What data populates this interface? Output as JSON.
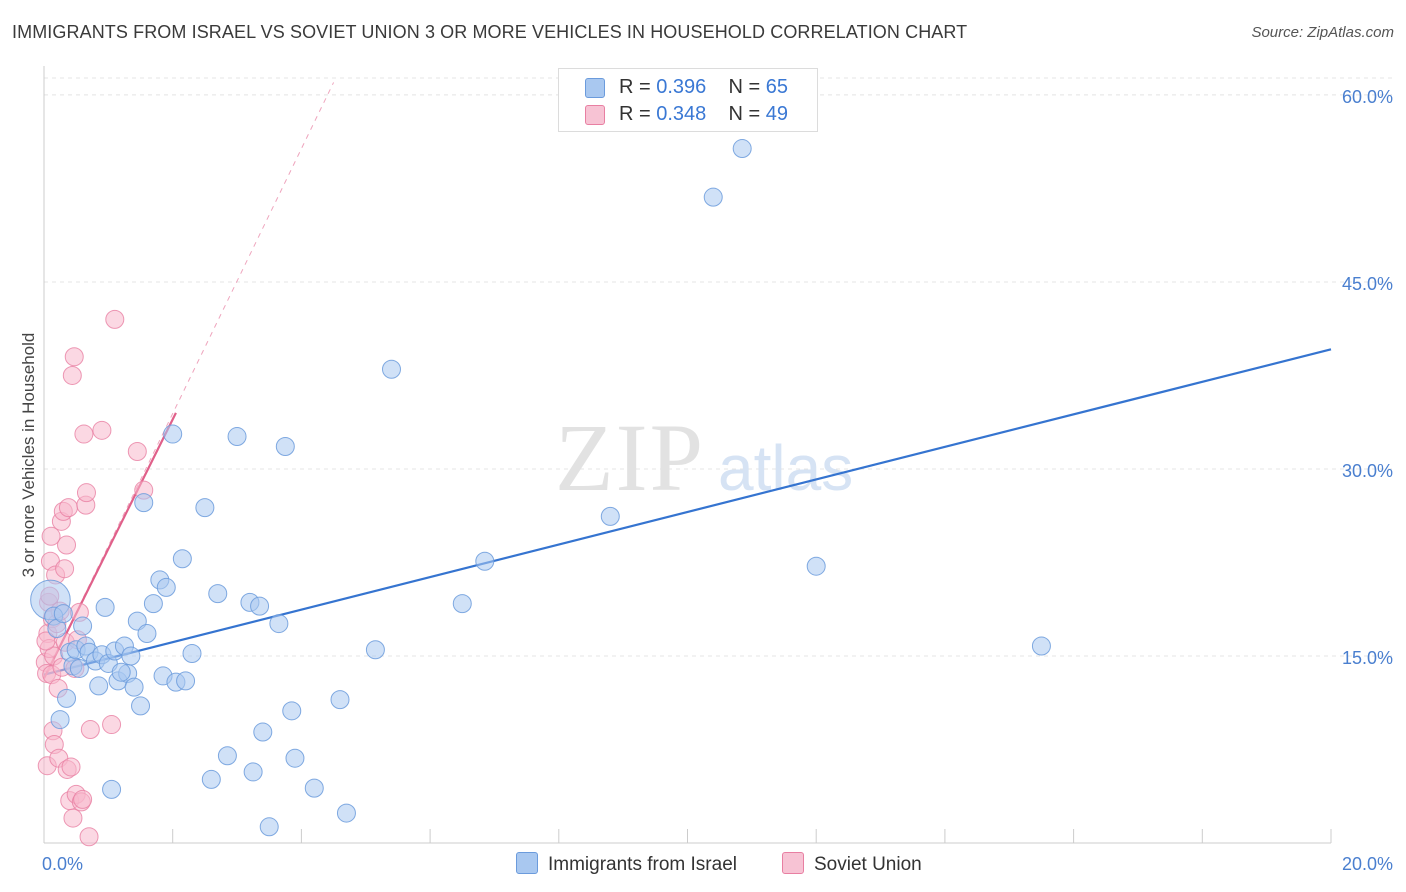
{
  "title": "IMMIGRANTS FROM ISRAEL VS SOVIET UNION 3 OR MORE VEHICLES IN HOUSEHOLD CORRELATION CHART",
  "source": "Source: ZipAtlas.com",
  "legend": {
    "rows": [
      {
        "r_label": "R = ",
        "r_value": "0.396",
        "n_label": "N = ",
        "n_value": "65"
      },
      {
        "r_label": "R = ",
        "r_value": "0.348",
        "n_label": "N = ",
        "n_value": "49"
      }
    ]
  },
  "bottom_legend": [
    "Immigrants from Israel",
    "Soviet Union"
  ],
  "colors": {
    "blue_fill": "#a9c8f0",
    "blue_stroke": "#6b9bdc",
    "blue_line": "#3574d0",
    "pink_fill": "#f7b8cc",
    "pink_stroke": "#e87fa2",
    "pink_line": "#e0608a",
    "grid": "#e4e4e4",
    "axis_label": "#4a7fcf"
  },
  "chart_data": {
    "type": "scatter",
    "title": "IMMIGRANTS FROM ISRAEL VS SOVIET UNION 3 OR MORE VEHICLES IN HOUSEHOLD CORRELATION CHART",
    "xlabel": "",
    "ylabel": "3 or more Vehicles in Household",
    "xlim": [
      0,
      20
    ],
    "ylim": [
      0,
      62
    ],
    "x_tick_labels": [
      "0.0%",
      "20.0%"
    ],
    "y_ticks": [
      15,
      30,
      45,
      60
    ],
    "y_tick_labels": [
      "15.0%",
      "30.0%",
      "45.0%",
      "60.0%"
    ],
    "grid": true,
    "legend_position": "top-center",
    "series": [
      {
        "name": "Immigrants from Israel",
        "r": 0.396,
        "n": 65,
        "trend": {
          "x": [
            0,
            20
          ],
          "y": [
            13.5,
            39.6
          ]
        },
        "points": [
          [
            0.1,
            19.5,
            2.2
          ],
          [
            0.15,
            18.2,
            1
          ],
          [
            0.2,
            17.2,
            1
          ],
          [
            0.25,
            9.9,
            1
          ],
          [
            0.35,
            11.6,
            1
          ],
          [
            0.4,
            15.3,
            1
          ],
          [
            0.45,
            14.2,
            1
          ],
          [
            0.5,
            15.5,
            1
          ],
          [
            0.6,
            17.4,
            1
          ],
          [
            0.65,
            15.8,
            1
          ],
          [
            0.7,
            15.3,
            1
          ],
          [
            0.8,
            14.6,
            1
          ],
          [
            0.85,
            12.6,
            1
          ],
          [
            0.9,
            15.1,
            1
          ],
          [
            0.95,
            18.9,
            1
          ],
          [
            1.0,
            14.4,
            1
          ],
          [
            1.05,
            4.3,
            1
          ],
          [
            1.1,
            15.4,
            1
          ],
          [
            1.15,
            13.0,
            1
          ],
          [
            1.25,
            15.8,
            1
          ],
          [
            1.3,
            13.6,
            1
          ],
          [
            1.35,
            15.0,
            1
          ],
          [
            1.4,
            12.5,
            1
          ],
          [
            1.45,
            17.8,
            1
          ],
          [
            1.5,
            11.0,
            1
          ],
          [
            1.55,
            27.3,
            1
          ],
          [
            1.6,
            16.8,
            1
          ],
          [
            1.7,
            19.2,
            1
          ],
          [
            1.8,
            21.1,
            1
          ],
          [
            1.85,
            13.4,
            1
          ],
          [
            1.9,
            20.5,
            1
          ],
          [
            2.0,
            32.8,
            1
          ],
          [
            2.05,
            12.9,
            1
          ],
          [
            2.15,
            22.8,
            1
          ],
          [
            2.2,
            13.0,
            1
          ],
          [
            2.3,
            15.2,
            1
          ],
          [
            2.5,
            26.9,
            1
          ],
          [
            2.6,
            5.1,
            1
          ],
          [
            2.7,
            20.0,
            1
          ],
          [
            2.85,
            7.0,
            1
          ],
          [
            3.0,
            32.6,
            1
          ],
          [
            3.2,
            19.3,
            1
          ],
          [
            3.25,
            5.7,
            1
          ],
          [
            3.35,
            19.0,
            1
          ],
          [
            3.4,
            8.9,
            1
          ],
          [
            3.5,
            1.3,
            1
          ],
          [
            3.65,
            17.6,
            1
          ],
          [
            3.75,
            31.8,
            1
          ],
          [
            3.85,
            10.6,
            1
          ],
          [
            3.9,
            6.8,
            1
          ],
          [
            4.2,
            4.4,
            1
          ],
          [
            4.6,
            11.5,
            1
          ],
          [
            4.7,
            2.4,
            1
          ],
          [
            5.15,
            15.5,
            1
          ],
          [
            5.4,
            38.0,
            1
          ],
          [
            6.5,
            19.2,
            1
          ],
          [
            6.85,
            22.6,
            1
          ],
          [
            8.8,
            26.2,
            1
          ],
          [
            10.4,
            51.8,
            1
          ],
          [
            10.85,
            55.7,
            1
          ],
          [
            12.0,
            22.2,
            1
          ],
          [
            15.5,
            15.8,
            1
          ],
          [
            0.3,
            18.4,
            1
          ],
          [
            0.55,
            14.0,
            1
          ],
          [
            1.2,
            13.7,
            1
          ]
        ]
      },
      {
        "name": "Soviet Union",
        "r": 0.348,
        "n": 49,
        "trend": {
          "x": [
            0,
            2.05
          ],
          "y": [
            13.2,
            34.5
          ]
        },
        "trend_extended": {
          "x": [
            0,
            4.5
          ],
          "y": [
            13.2,
            61.0
          ]
        },
        "points": [
          [
            0.02,
            14.5,
            1
          ],
          [
            0.04,
            13.6,
            1
          ],
          [
            0.05,
            6.2,
            1
          ],
          [
            0.06,
            16.8,
            1
          ],
          [
            0.07,
            19.3,
            1
          ],
          [
            0.08,
            15.6,
            1
          ],
          [
            0.1,
            22.6,
            1
          ],
          [
            0.12,
            13.5,
            1
          ],
          [
            0.13,
            18.0,
            1
          ],
          [
            0.14,
            9.0,
            1
          ],
          [
            0.15,
            15.0,
            1
          ],
          [
            0.16,
            7.9,
            1
          ],
          [
            0.18,
            21.5,
            1
          ],
          [
            0.2,
            17.6,
            1
          ],
          [
            0.22,
            12.4,
            1
          ],
          [
            0.23,
            6.8,
            1
          ],
          [
            0.25,
            18.6,
            1
          ],
          [
            0.27,
            25.8,
            1
          ],
          [
            0.28,
            14.1,
            1
          ],
          [
            0.3,
            26.6,
            1
          ],
          [
            0.32,
            22.0,
            1
          ],
          [
            0.33,
            16.1,
            1
          ],
          [
            0.35,
            23.9,
            1
          ],
          [
            0.36,
            5.9,
            1
          ],
          [
            0.38,
            26.9,
            1
          ],
          [
            0.4,
            3.4,
            1
          ],
          [
            0.42,
            6.1,
            1
          ],
          [
            0.44,
            37.5,
            1
          ],
          [
            0.45,
            2.0,
            1
          ],
          [
            0.47,
            39.0,
            1
          ],
          [
            0.48,
            14.0,
            1
          ],
          [
            0.5,
            3.9,
            1
          ],
          [
            0.52,
            16.3,
            1
          ],
          [
            0.55,
            18.5,
            1
          ],
          [
            0.58,
            3.3,
            1
          ],
          [
            0.6,
            3.5,
            1
          ],
          [
            0.62,
            32.8,
            1
          ],
          [
            0.65,
            27.1,
            1
          ],
          [
            0.66,
            28.1,
            1
          ],
          [
            0.7,
            0.5,
            1
          ],
          [
            0.72,
            9.1,
            1
          ],
          [
            0.9,
            33.1,
            1
          ],
          [
            1.05,
            9.5,
            1
          ],
          [
            1.1,
            42.0,
            1
          ],
          [
            1.45,
            31.4,
            1
          ],
          [
            1.55,
            28.3,
            1
          ],
          [
            0.03,
            16.2,
            1
          ],
          [
            0.09,
            19.8,
            1
          ],
          [
            0.11,
            24.6,
            1
          ]
        ]
      }
    ]
  }
}
